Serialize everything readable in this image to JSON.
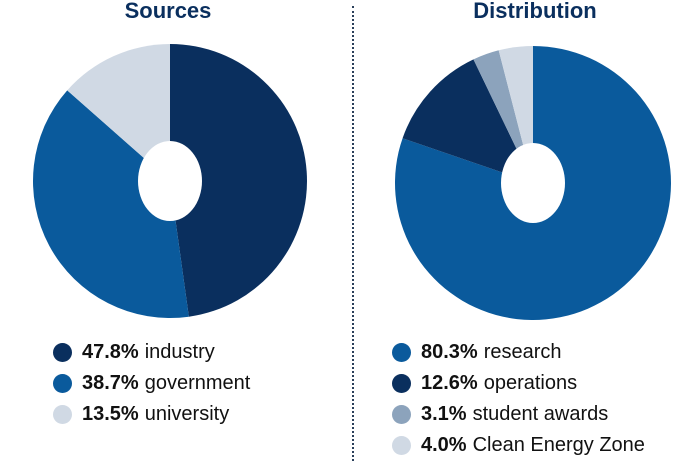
{
  "chart_data": [
    {
      "type": "pie",
      "title": "Sources",
      "donut": true,
      "start": "top",
      "direction": "clockwise",
      "categories": [
        "industry",
        "government",
        "university"
      ],
      "values": [
        47.8,
        38.7,
        13.5
      ],
      "labels": [
        "47.8%",
        "38.7%",
        "13.5%"
      ],
      "colors": [
        "#0a2f5e",
        "#0a5a9c",
        "#d0d9e4"
      ],
      "legend": "bottom"
    },
    {
      "type": "pie",
      "title": "Distribution",
      "donut": true,
      "start": "top",
      "direction": "clockwise",
      "categories": [
        "research",
        "operations",
        "student awards",
        "Clean Energy Zone"
      ],
      "values": [
        80.3,
        12.6,
        3.1,
        4.0
      ],
      "labels": [
        "80.3%",
        "12.6%",
        "3.1%",
        "4.0%"
      ],
      "colors": [
        "#0a5a9c",
        "#0a2f5e",
        "#8ca3bc",
        "#d0d9e4"
      ],
      "legend": "bottom"
    }
  ]
}
